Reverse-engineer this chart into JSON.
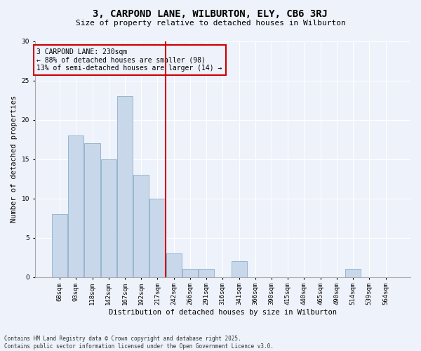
{
  "title": "3, CARPOND LANE, WILBURTON, ELY, CB6 3RJ",
  "subtitle": "Size of property relative to detached houses in Wilburton",
  "xlabel": "Distribution of detached houses by size in Wilburton",
  "ylabel": "Number of detached properties",
  "footer_line1": "Contains HM Land Registry data © Crown copyright and database right 2025.",
  "footer_line2": "Contains public sector information licensed under the Open Government Licence v3.0.",
  "annotation_line1": "3 CARPOND LANE: 230sqm",
  "annotation_line2": "← 88% of detached houses are smaller (98)",
  "annotation_line3": "13% of semi-detached houses are larger (14) →",
  "bar_color": "#c8d8ea",
  "bar_edge_color": "#8aafc8",
  "vline_color": "#cc0000",
  "background_color": "#eef2fa",
  "grid_color": "#ffffff",
  "categories": [
    "68sqm",
    "93sqm",
    "118sqm",
    "142sqm",
    "167sqm",
    "192sqm",
    "217sqm",
    "242sqm",
    "266sqm",
    "291sqm",
    "316sqm",
    "341sqm",
    "366sqm",
    "390sqm",
    "415sqm",
    "440sqm",
    "465sqm",
    "490sqm",
    "514sqm",
    "539sqm",
    "564sqm"
  ],
  "values": [
    8,
    18,
    17,
    15,
    23,
    13,
    10,
    3,
    1,
    1,
    0,
    2,
    0,
    0,
    0,
    0,
    0,
    0,
    1,
    0,
    0
  ],
  "vline_x_idx": 6.5,
  "ylim": [
    0,
    30
  ],
  "yticks": [
    0,
    5,
    10,
    15,
    20,
    25,
    30
  ],
  "title_fontsize": 10,
  "subtitle_fontsize": 8,
  "tick_fontsize": 6.5,
  "ylabel_fontsize": 7.5,
  "xlabel_fontsize": 7.5,
  "annot_fontsize": 7,
  "footer_fontsize": 5.5
}
